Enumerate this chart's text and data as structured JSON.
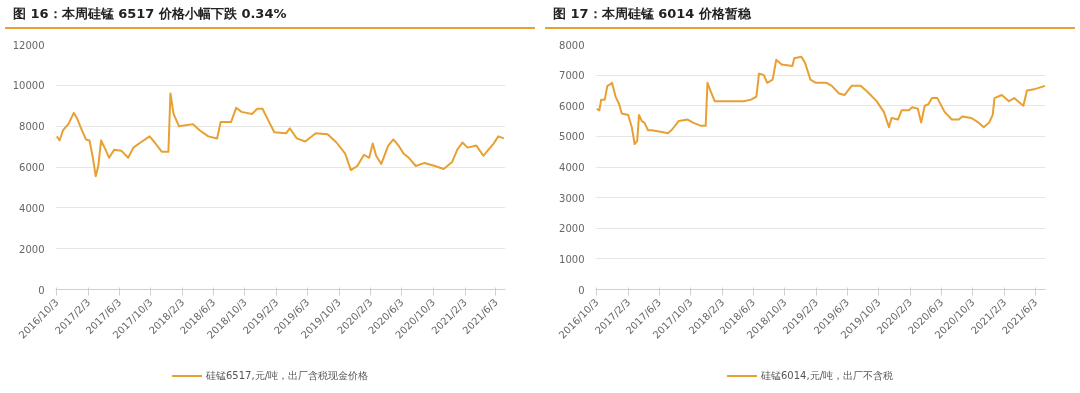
{
  "chart_data": [
    {
      "type": "line",
      "title": "图 16：本周硅锰 6517 价格小幅下跌 0.34%",
      "legend": "bottom",
      "grid": "y",
      "xlim": [
        "2016-09-28",
        "2021-07-10"
      ],
      "ylim": [
        0,
        12000
      ],
      "yticks": [
        0,
        2000,
        4000,
        6000,
        8000,
        10000,
        12000
      ],
      "xticks": [
        {
          "value": "2016-10-03",
          "label": "2016/10/3"
        },
        {
          "value": "2017-02-03",
          "label": "2017/2/3"
        },
        {
          "value": "2017-06-03",
          "label": "2017/6/3"
        },
        {
          "value": "2017-10-03",
          "label": "2017/10/3"
        },
        {
          "value": "2018-02-03",
          "label": "2018/2/3"
        },
        {
          "value": "2018-06-03",
          "label": "2018/6/3"
        },
        {
          "value": "2018-10-03",
          "label": "2018/10/3"
        },
        {
          "value": "2019-02-03",
          "label": "2019/2/3"
        },
        {
          "value": "2019-06-03",
          "label": "2019/6/3"
        },
        {
          "value": "2019-10-03",
          "label": "2019/10/3"
        },
        {
          "value": "2020-02-03",
          "label": "2020/2/3"
        },
        {
          "value": "2020-06-03",
          "label": "2020/6/3"
        },
        {
          "value": "2020-10-03",
          "label": "2020/10/3"
        },
        {
          "value": "2021-02-03",
          "label": "2021/2/3"
        },
        {
          "value": "2021-06-03",
          "label": "2021/6/3"
        }
      ],
      "series": [
        {
          "name": "硅锰6517,元/吨，出厂含税现金价格",
          "color": "#e8a033",
          "x": [
            "2016-10-03",
            "2016-10-14",
            "2016-10-27",
            "2016-11-17",
            "2016-12-08",
            "2016-12-20",
            "2017-01-05",
            "2017-01-24",
            "2017-02-07",
            "2017-02-20",
            "2017-03-03",
            "2017-03-13",
            "2017-03-24",
            "2017-04-10",
            "2017-04-24",
            "2017-05-14",
            "2017-06-10",
            "2017-07-07",
            "2017-07-27",
            "2017-08-24",
            "2017-09-28",
            "2017-10-18",
            "2017-11-14",
            "2017-12-10",
            "2017-12-18",
            "2017-12-30",
            "2018-01-20",
            "2018-03-15",
            "2018-04-10",
            "2018-05-14",
            "2018-06-17",
            "2018-07-01",
            "2018-08-10",
            "2018-08-30",
            "2018-09-20",
            "2018-10-30",
            "2018-11-20",
            "2018-12-10",
            "2019-01-05",
            "2019-01-25",
            "2019-03-12",
            "2019-03-26",
            "2019-04-22",
            "2019-05-25",
            "2019-07-05",
            "2019-08-20",
            "2019-09-23",
            "2019-10-27",
            "2019-11-18",
            "2019-12-13",
            "2020-01-08",
            "2020-01-28",
            "2020-02-11",
            "2020-02-24",
            "2020-03-15",
            "2020-04-11",
            "2020-05-01",
            "2020-05-21",
            "2020-06-10",
            "2020-06-30",
            "2020-07-27",
            "2020-08-30",
            "2020-10-09",
            "2020-11-12",
            "2020-12-15",
            "2021-01-04",
            "2021-01-24",
            "2021-02-13",
            "2021-03-19",
            "2021-04-15",
            "2021-05-05",
            "2021-05-25",
            "2021-06-12",
            "2021-07-04"
          ],
          "values": [
            7500,
            7300,
            7800,
            8100,
            8650,
            8400,
            7900,
            7350,
            7300,
            6450,
            5550,
            6050,
            7300,
            6850,
            6450,
            6850,
            6800,
            6450,
            6950,
            7200,
            7500,
            7200,
            6750,
            6750,
            9600,
            8600,
            8000,
            8100,
            7800,
            7500,
            7400,
            8200,
            8200,
            8900,
            8700,
            8600,
            8850,
            8850,
            8200,
            7700,
            7650,
            7900,
            7400,
            7250,
            7650,
            7600,
            7200,
            6650,
            5850,
            6050,
            6600,
            6450,
            7150,
            6550,
            6150,
            7050,
            7350,
            7050,
            6650,
            6450,
            6050,
            6200,
            6050,
            5900,
            6250,
            6850,
            7200,
            6950,
            7050,
            6550,
            6850,
            7150,
            7500,
            7400
          ]
        }
      ]
    },
    {
      "type": "line",
      "title": "图 17：本周硅锰 6014 价格暂稳",
      "legend": "bottom",
      "grid": "y",
      "xlim": [
        "2016-09-28",
        "2021-07-12"
      ],
      "ylim": [
        0,
        8000
      ],
      "yticks": [
        0,
        1000,
        2000,
        3000,
        4000,
        5000,
        6000,
        7000,
        8000
      ],
      "xticks": [
        {
          "value": "2016-10-03",
          "label": "2016/10/3"
        },
        {
          "value": "2017-02-03",
          "label": "2017/2/3"
        },
        {
          "value": "2017-06-03",
          "label": "2017/6/3"
        },
        {
          "value": "2017-10-03",
          "label": "2017/10/3"
        },
        {
          "value": "2018-02-03",
          "label": "2018/2/3"
        },
        {
          "value": "2018-06-03",
          "label": "2018/6/3"
        },
        {
          "value": "2018-10-03",
          "label": "2018/10/3"
        },
        {
          "value": "2019-02-03",
          "label": "2019/2/3"
        },
        {
          "value": "2019-06-03",
          "label": "2019/6/3"
        },
        {
          "value": "2019-10-03",
          "label": "2019/10/3"
        },
        {
          "value": "2020-02-03",
          "label": "2020/2/3"
        },
        {
          "value": "2020-06-03",
          "label": "2020/6/3"
        },
        {
          "value": "2020-10-03",
          "label": "2020/10/3"
        },
        {
          "value": "2021-02-03",
          "label": "2021/2/3"
        },
        {
          "value": "2021-06-03",
          "label": "2021/6/3"
        }
      ],
      "series": [
        {
          "name": "硅锰6014,元/吨，出厂不含税",
          "color": "#e8a033",
          "x": [
            "2016-10-03",
            "2016-10-13",
            "2016-10-20",
            "2016-11-03",
            "2016-11-13",
            "2016-11-24",
            "2016-12-01",
            "2016-12-15",
            "2016-12-29",
            "2017-01-08",
            "2017-02-02",
            "2017-02-16",
            "2017-02-27",
            "2017-03-09",
            "2017-03-16",
            "2017-03-27",
            "2017-04-06",
            "2017-04-20",
            "2017-05-04",
            "2017-06-08",
            "2017-07-06",
            "2017-07-20",
            "2017-08-17",
            "2017-09-21",
            "2017-10-12",
            "2017-11-09",
            "2017-11-30",
            "2017-12-07",
            "2017-12-18",
            "2018-01-04",
            "2018-03-01",
            "2018-04-27",
            "2018-05-25",
            "2018-06-15",
            "2018-06-25",
            "2018-07-14",
            "2018-07-27",
            "2018-08-17",
            "2018-08-31",
            "2018-09-21",
            "2018-11-02",
            "2018-11-09",
            "2018-12-07",
            "2018-12-21",
            "2019-01-11",
            "2019-02-01",
            "2019-03-15",
            "2019-04-04",
            "2019-05-02",
            "2019-05-23",
            "2019-06-20",
            "2019-07-25",
            "2019-08-21",
            "2019-09-25",
            "2019-10-23",
            "2019-11-12",
            "2019-11-22",
            "2019-12-17",
            "2019-12-31",
            "2020-01-28",
            "2020-02-10",
            "2020-03-03",
            "2020-03-16",
            "2020-03-30",
            "2020-04-13",
            "2020-04-27",
            "2020-05-18",
            "2020-06-15",
            "2020-07-13",
            "2020-08-09",
            "2020-08-23",
            "2020-09-27",
            "2020-10-25",
            "2020-11-14",
            "2020-12-05",
            "2020-12-19",
            "2020-12-26",
            "2021-01-23",
            "2021-02-20",
            "2021-03-13",
            "2021-03-27",
            "2021-04-17",
            "2021-05-01",
            "2021-06-03",
            "2021-07-10"
          ],
          "values": [
            5900,
            5850,
            6200,
            6200,
            6650,
            6700,
            6750,
            6300,
            6050,
            5750,
            5700,
            5300,
            4750,
            4850,
            5700,
            5500,
            5450,
            5200,
            5200,
            5150,
            5100,
            5200,
            5500,
            5550,
            5450,
            5350,
            5350,
            6750,
            6500,
            6150,
            6150,
            6150,
            6200,
            6300,
            7050,
            7000,
            6750,
            6850,
            7500,
            7350,
            7300,
            7550,
            7600,
            7400,
            6850,
            6750,
            6750,
            6650,
            6400,
            6350,
            6650,
            6650,
            6450,
            6150,
            5800,
            5300,
            5600,
            5550,
            5850,
            5850,
            5950,
            5900,
            5450,
            6000,
            6050,
            6250,
            6250,
            5800,
            5550,
            5550,
            5650,
            5600,
            5450,
            5300,
            5450,
            5700,
            6250,
            6350,
            6150,
            6250,
            6150,
            6000,
            6500,
            6550,
            6650
          ]
        }
      ]
    }
  ]
}
